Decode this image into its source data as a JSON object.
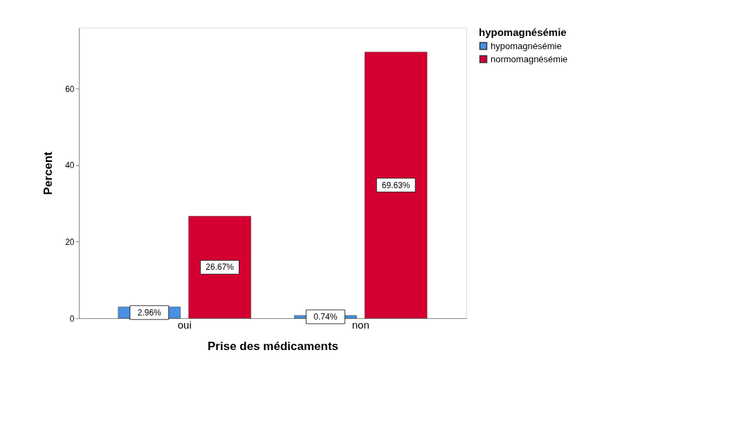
{
  "chart_data": {
    "type": "bar",
    "xlabel": "Prise des médicaments",
    "ylabel": "Percent",
    "legend_title": "hypomagnésémie",
    "categories": [
      "oui",
      "non"
    ],
    "series": [
      {
        "name": "hypomagnésémie",
        "color": "#4a90e2",
        "values": [
          2.96,
          0.74
        ],
        "value_labels": [
          "2.96%",
          "0.74%"
        ]
      },
      {
        "name": "normomagnésémie",
        "color": "#d50032",
        "values": [
          26.67,
          69.63
        ],
        "value_labels": [
          "26.67%",
          "69.63%"
        ]
      }
    ],
    "ylim": [
      0,
      76
    ],
    "yticks": [
      0,
      20,
      40,
      60
    ],
    "grid": false,
    "legend": "top right"
  }
}
